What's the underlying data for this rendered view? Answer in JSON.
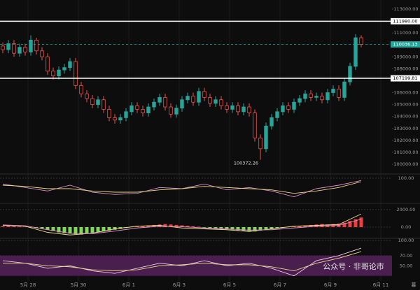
{
  "chart_data": {
    "type": "candlestick",
    "series": [
      {
        "open": [
          109900,
          109600,
          110100,
          109300,
          109800,
          109400,
          110400,
          109500,
          109000,
          107800,
          107400,
          107900,
          108100,
          108600,
          106600,
          105900,
          105500,
          105000,
          105400,
          104600,
          103900,
          103700,
          103900,
          104400,
          104900,
          104600,
          104300,
          104800,
          105200,
          105600,
          104800,
          104200,
          104700,
          105400,
          105700,
          105200,
          106100,
          105600,
          105100,
          105400,
          104900,
          104600,
          104900,
          104400,
          104800,
          104300,
          102200,
          101300,
          103200,
          103900,
          104400,
          104900,
          104600,
          105200,
          105500,
          105900,
          105600,
          105700,
          105400,
          106000,
          106300,
          105600,
          106900,
          108200,
          110600
        ],
        "high": [
          110200,
          110400,
          110400,
          110100,
          110100,
          110800,
          110600,
          109800,
          109300,
          108100,
          108200,
          108400,
          108900,
          108900,
          106900,
          106200,
          105800,
          105700,
          105700,
          104900,
          104200,
          104200,
          104700,
          105200,
          105200,
          104900,
          105100,
          105500,
          105900,
          105900,
          105100,
          105000,
          105700,
          106000,
          106000,
          106400,
          106400,
          105900,
          105700,
          105700,
          105200,
          105200,
          105200,
          105100,
          105100,
          104600,
          102500,
          103500,
          104200,
          104700,
          105200,
          105200,
          105500,
          105800,
          106200,
          106200,
          106000,
          106000,
          106300,
          106600,
          106600,
          107200,
          108500,
          110900,
          110800
        ],
        "low": [
          109300,
          109300,
          109000,
          109000,
          109100,
          109100,
          109200,
          108700,
          107500,
          107100,
          107100,
          107600,
          107800,
          106300,
          105600,
          105200,
          104700,
          104700,
          104300,
          103600,
          103400,
          103400,
          103600,
          104100,
          104300,
          104000,
          104000,
          104500,
          104900,
          104500,
          103900,
          103900,
          104400,
          105100,
          104900,
          104900,
          105300,
          104800,
          104800,
          104600,
          104300,
          104300,
          104100,
          104100,
          104000,
          101900,
          100372.26,
          101000,
          102900,
          103600,
          104100,
          104300,
          104300,
          104900,
          105200,
          105300,
          105300,
          105100,
          105100,
          105700,
          105300,
          105300,
          106600,
          107900,
          109800
        ],
        "close": [
          109600,
          110100,
          109300,
          109800,
          109400,
          110400,
          109500,
          109000,
          107800,
          107400,
          107900,
          108100,
          108600,
          106600,
          105900,
          105500,
          105000,
          105400,
          104600,
          103900,
          103700,
          103900,
          104400,
          104900,
          104600,
          104300,
          104800,
          105200,
          105600,
          104800,
          104200,
          104700,
          105400,
          105700,
          105200,
          106100,
          105600,
          105100,
          105400,
          104900,
          104600,
          104900,
          104400,
          104800,
          104300,
          102200,
          101300,
          103200,
          103900,
          104400,
          104900,
          104600,
          105200,
          105500,
          105900,
          105600,
          105700,
          105400,
          106000,
          106300,
          105600,
          106900,
          108200,
          110600,
          110036.13
        ],
        "up_color": "#26a69a",
        "down_color": "#ef5350"
      }
    ],
    "ylim": [
      99240,
      113760
    ],
    "yticks": [
      {
        "value": 100000,
        "label": "100000.00"
      },
      {
        "value": 101000,
        "label": "101000.00"
      },
      {
        "value": 102000,
        "label": "102000.00"
      },
      {
        "value": 103000,
        "label": "103000.00"
      },
      {
        "value": 104000,
        "label": "104000.00"
      },
      {
        "value": 105000,
        "label": "105000.00"
      },
      {
        "value": 106000,
        "label": "106000.00"
      },
      {
        "value": 108000,
        "label": "108000.00"
      },
      {
        "value": 109000,
        "label": "109000.00"
      },
      {
        "value": 111000,
        "label": "111000.00"
      },
      {
        "value": 113000,
        "label": "113000.00"
      }
    ],
    "xlim": [
      -0.5,
      69.5
    ],
    "xticks": [
      {
        "value": 4.5,
        "label": "5月 28"
      },
      {
        "value": 13.5,
        "label": "5月 30"
      },
      {
        "value": 22.5,
        "label": "6月 1"
      },
      {
        "value": 31.5,
        "label": "6月 3"
      },
      {
        "value": 40.5,
        "label": "6月 5"
      },
      {
        "value": 49.5,
        "label": "6月 7"
      },
      {
        "value": 58.5,
        "label": "6月 9"
      },
      {
        "value": 67.5,
        "label": "6月 11"
      }
    ],
    "levels": [
      {
        "value": 111980,
        "label": "111980.00"
      },
      {
        "value": 107199.81,
        "label": "107199.81"
      }
    ],
    "last_price": {
      "value": 110036.13,
      "label": "110036.13"
    },
    "low_annotation": {
      "value": 100372.26,
      "label": "100372.26"
    },
    "indicators": [
      {
        "ylim": [
          -5,
          115
        ],
        "yticks": [
          {
            "value": 100,
            "label": "100.00"
          }
        ],
        "series": [
          {
            "color": "#d98cc4",
            "values": [
              75,
              60,
              45,
              70,
              40,
              30,
              35,
              60,
              55,
              75,
              50,
              60,
              45,
              20,
              55,
              70,
              90
            ]
          },
          {
            "color": "#e8d88a",
            "values": [
              70,
              65,
              55,
              55,
              45,
              40,
              40,
              50,
              55,
              65,
              60,
              55,
              50,
              35,
              45,
              60,
              85
            ]
          }
        ]
      },
      {
        "ylim": [
          -1200,
          2640
        ],
        "yticks": [
          {
            "value": 2000,
            "label": "2000.00"
          },
          {
            "value": 0,
            "label": "0.00"
          }
        ],
        "histogram": [
          100,
          120,
          80,
          60,
          40,
          -50,
          -100,
          -150,
          -300,
          -450,
          -600,
          -700,
          -750,
          -800,
          -850,
          -700,
          -650,
          -550,
          -500,
          -400,
          -300,
          -200,
          -100,
          50,
          100,
          150,
          200,
          250,
          300,
          350,
          300,
          250,
          200,
          150,
          100,
          50,
          -50,
          -100,
          -150,
          -200,
          -250,
          -300,
          -350,
          -400,
          -450,
          -500,
          -400,
          -300,
          -200,
          -100,
          -50,
          50,
          100,
          150,
          200,
          250,
          300,
          350,
          300,
          350,
          400,
          500,
          700,
          900,
          1100
        ],
        "pos_color": "#f23b3b",
        "neg_color": "#7ed957",
        "series": [
          {
            "color": "#e8d88a",
            "values": [
              200,
              100,
              -600,
              -900,
              -700,
              -200,
              100,
              200,
              -100,
              -200,
              -300,
              -500,
              -200,
              100,
              200,
              300,
              1500
            ]
          },
          {
            "color": "#d98cc4",
            "values": [
              250,
              150,
              -300,
              -700,
              -750,
              -450,
              -100,
              100,
              50,
              -100,
              -200,
              -350,
              -300,
              -100,
              100,
              200,
              900
            ]
          }
        ]
      },
      {
        "ylim": [
          20,
          103
        ],
        "yticks": [
          {
            "value": 100,
            "label": "100.00"
          },
          {
            "value": 70,
            "label": "70.00"
          },
          {
            "value": 50,
            "label": "50.00"
          }
        ],
        "band": [
          30,
          70
        ],
        "band_color": "#4a1f4f",
        "series": [
          {
            "color": "#f0c8e8",
            "values": [
              60,
              55,
              45,
              50,
              40,
              35,
              45,
              55,
              50,
              60,
              50,
              55,
              45,
              30,
              60,
              70,
              85
            ]
          },
          {
            "color": "#e8d88a",
            "values": [
              55,
              55,
              50,
              48,
              42,
              40,
              42,
              50,
              52,
              55,
              52,
              52,
              48,
              40,
              55,
              65,
              78
            ]
          }
        ]
      }
    ],
    "watermark": "公众号 · 非哥论市",
    "corner_label": "幕"
  }
}
